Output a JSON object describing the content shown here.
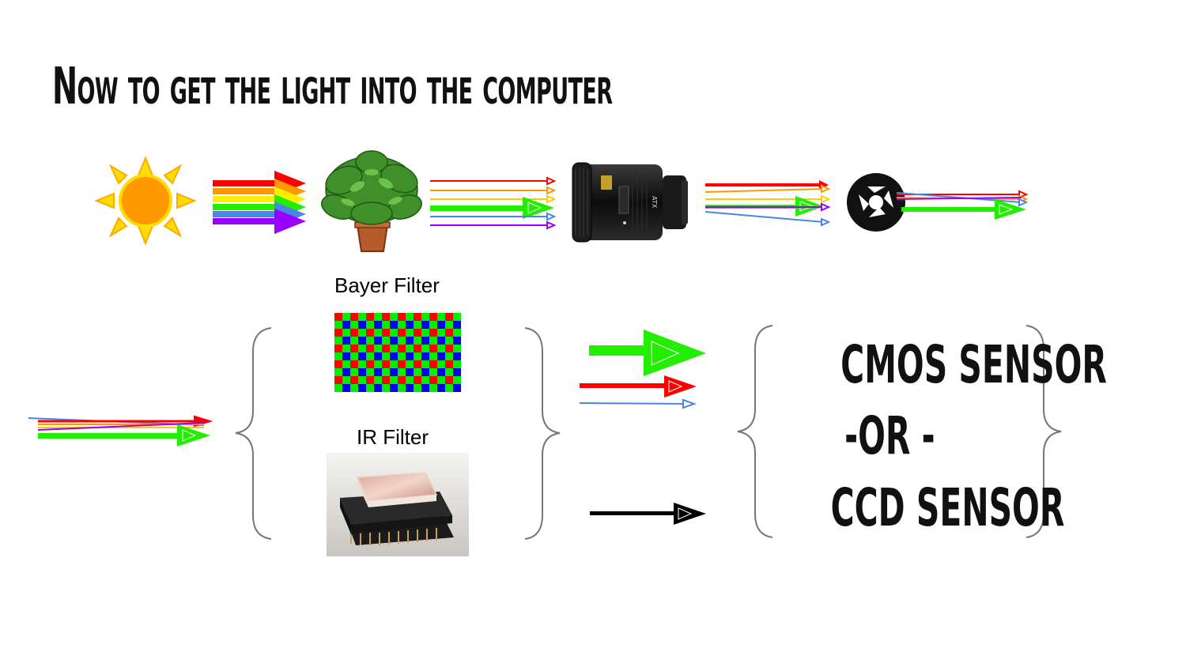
{
  "title": "Now to get the light into the computer",
  "bayer_filter_label": "Bayer Filter",
  "ir_filter_label": "IR Filter",
  "sensor": {
    "cmos": "CMOS SENSOR",
    "or": "-OR -",
    "ccd": "CCD SENSOR"
  },
  "colors": {
    "red": "#ff0000",
    "orange": "#ff9900",
    "yellow": "#ffee00",
    "green": "#22ee00",
    "blue": "#4a86e8",
    "purple": "#9900ff",
    "black": "#000000",
    "sun": "#ff9900",
    "sun_ray": "#ffcc00"
  }
}
